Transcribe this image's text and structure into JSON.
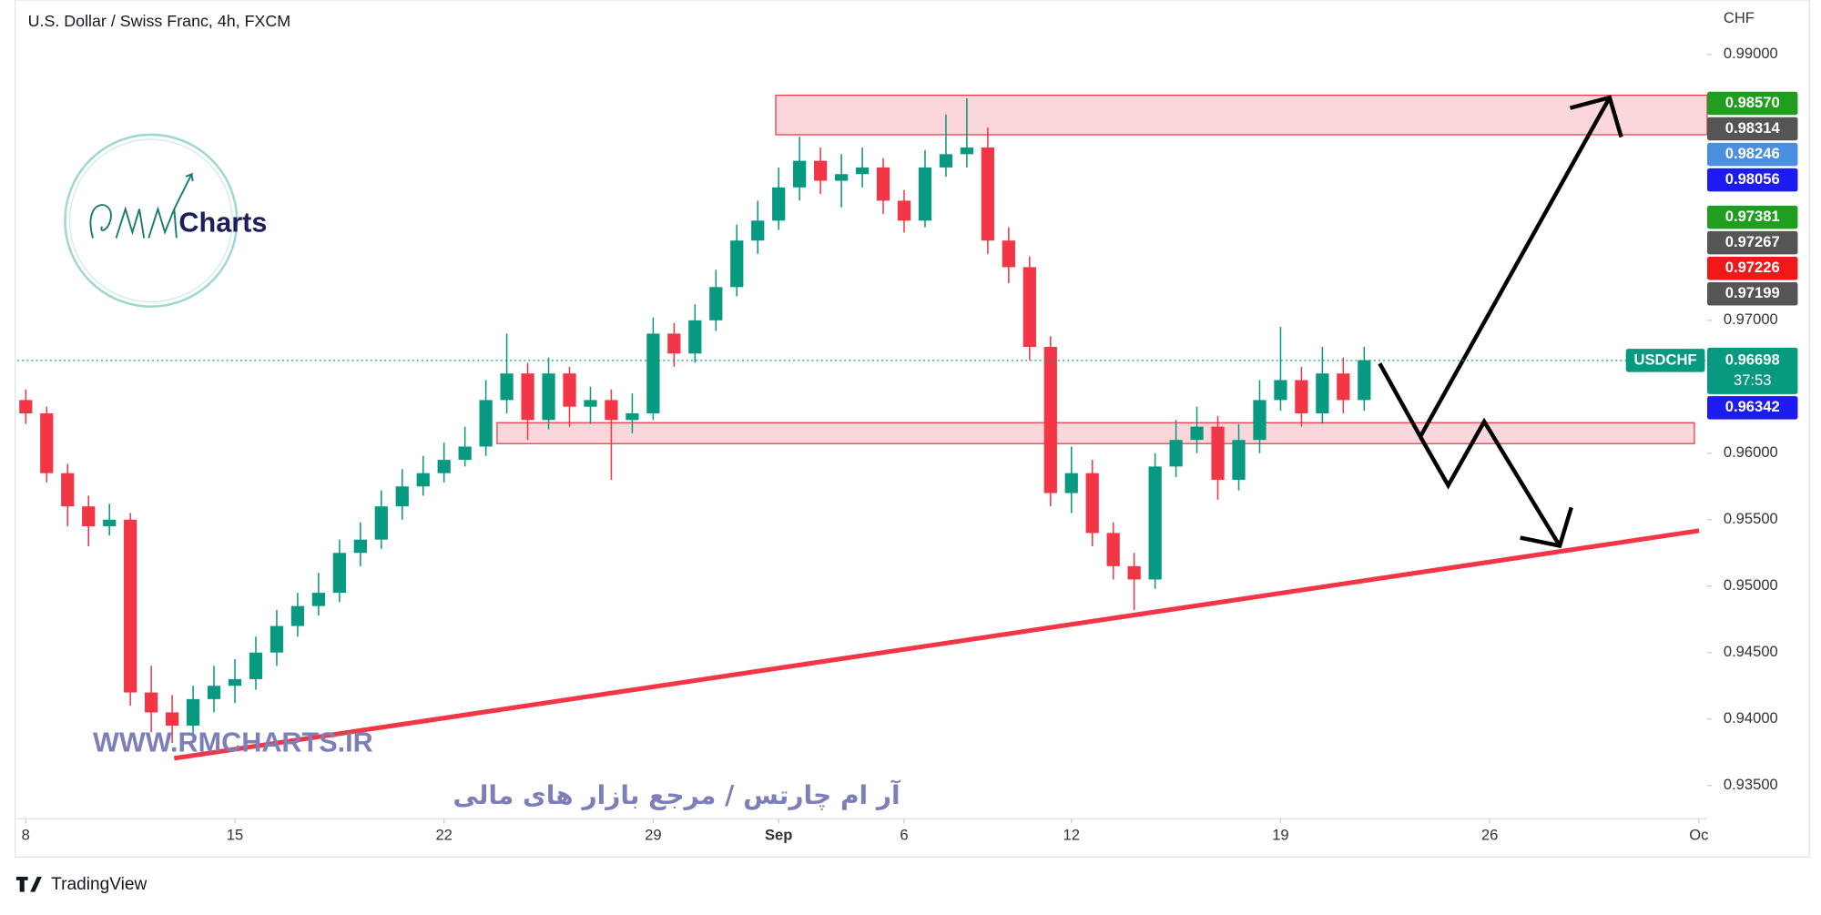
{
  "chart_data": {
    "type": "candlestick",
    "title": "U.S. Dollar / Swiss Franc, 4h, FXCM",
    "y_unit_label": "CHF",
    "up_color": "#089981",
    "down_color": "#f23645",
    "x": [
      0,
      0.5,
      1,
      1.5,
      2,
      2.5,
      3,
      3.5,
      4,
      4.5,
      5,
      5.5,
      6,
      6.5,
      7,
      7.5,
      8,
      8.5,
      9,
      9.5,
      10,
      10.5,
      11,
      11.5,
      12,
      12.5,
      13,
      13.5,
      14,
      14.5,
      15,
      15.5,
      16,
      16.5,
      17,
      17.5,
      18,
      18.5,
      19,
      19.5,
      20,
      20.5,
      21,
      21.5,
      22,
      22.5,
      23,
      23.5,
      24,
      24.5,
      25,
      25.5,
      26,
      26.5,
      27,
      27.5,
      28,
      28.5,
      29,
      29.5,
      30,
      30.5,
      31,
      31.5,
      32
    ],
    "open": [
      0.964,
      0.963,
      0.9585,
      0.956,
      0.9545,
      0.955,
      0.942,
      0.9405,
      0.9395,
      0.9415,
      0.9425,
      0.943,
      0.945,
      0.947,
      0.9485,
      0.9495,
      0.9525,
      0.9535,
      0.956,
      0.9575,
      0.9585,
      0.9595,
      0.9605,
      0.964,
      0.966,
      0.9625,
      0.966,
      0.9635,
      0.964,
      0.9625,
      0.963,
      0.969,
      0.9675,
      0.97,
      0.9725,
      0.976,
      0.9775,
      0.98,
      0.982,
      0.9805,
      0.981,
      0.9815,
      0.979,
      0.9775,
      0.9815,
      0.9825,
      0.983,
      0.976,
      0.974,
      0.968,
      0.957,
      0.9585,
      0.954,
      0.9515,
      0.9505,
      0.959,
      0.961,
      0.962,
      0.958,
      0.961,
      0.964,
      0.9655,
      0.963,
      0.966,
      0.964
    ],
    "high": [
      0.9648,
      0.9635,
      0.9592,
      0.9568,
      0.9562,
      0.9555,
      0.944,
      0.9418,
      0.9425,
      0.944,
      0.9445,
      0.9462,
      0.9482,
      0.9495,
      0.951,
      0.9535,
      0.9548,
      0.9572,
      0.9588,
      0.9598,
      0.9608,
      0.962,
      0.9655,
      0.969,
      0.9668,
      0.9672,
      0.9665,
      0.965,
      0.9648,
      0.9645,
      0.9702,
      0.9698,
      0.9712,
      0.9738,
      0.9772,
      0.979,
      0.9815,
      0.9838,
      0.983,
      0.9825,
      0.983,
      0.9822,
      0.9798,
      0.9828,
      0.9855,
      0.9867,
      0.9845,
      0.977,
      0.9748,
      0.9688,
      0.9605,
      0.9595,
      0.9548,
      0.9525,
      0.96,
      0.9625,
      0.9635,
      0.9628,
      0.9622,
      0.9655,
      0.9695,
      0.9665,
      0.968,
      0.9672,
      0.968
    ],
    "low": [
      0.9622,
      0.9578,
      0.9545,
      0.953,
      0.9538,
      0.941,
      0.939,
      0.9382,
      0.9388,
      0.9405,
      0.9412,
      0.9422,
      0.944,
      0.9462,
      0.9478,
      0.9488,
      0.9515,
      0.9528,
      0.955,
      0.9568,
      0.9578,
      0.959,
      0.9598,
      0.963,
      0.961,
      0.9618,
      0.962,
      0.9622,
      0.958,
      0.9615,
      0.9625,
      0.9665,
      0.9668,
      0.9692,
      0.9718,
      0.975,
      0.9768,
      0.979,
      0.9795,
      0.9785,
      0.98,
      0.978,
      0.9766,
      0.977,
      0.9808,
      0.9815,
      0.975,
      0.9728,
      0.967,
      0.956,
      0.9555,
      0.953,
      0.9505,
      0.9482,
      0.9498,
      0.9582,
      0.96,
      0.9565,
      0.9572,
      0.96,
      0.9632,
      0.962,
      0.9622,
      0.963,
      0.9632
    ],
    "close": [
      0.963,
      0.9585,
      0.956,
      0.9545,
      0.955,
      0.942,
      0.9405,
      0.9395,
      0.9415,
      0.9425,
      0.943,
      0.945,
      0.947,
      0.9485,
      0.9495,
      0.9525,
      0.9535,
      0.956,
      0.9575,
      0.9585,
      0.9595,
      0.9605,
      0.964,
      0.966,
      0.9625,
      0.966,
      0.9635,
      0.964,
      0.9625,
      0.963,
      0.969,
      0.9675,
      0.97,
      0.9725,
      0.976,
      0.9775,
      0.98,
      0.982,
      0.9805,
      0.981,
      0.9815,
      0.979,
      0.9775,
      0.9815,
      0.9825,
      0.983,
      0.976,
      0.974,
      0.968,
      0.957,
      0.9585,
      0.954,
      0.9515,
      0.9505,
      0.959,
      0.961,
      0.962,
      0.958,
      0.961,
      0.964,
      0.9655,
      0.963,
      0.966,
      0.964,
      0.967
    ],
    "xlim": [
      -0.2,
      40.2
    ],
    "ylim": [
      0.9325,
      0.9941
    ],
    "xticks": [
      {
        "value": 0,
        "label": "8"
      },
      {
        "value": 5,
        "label": "15"
      },
      {
        "value": 10,
        "label": "22"
      },
      {
        "value": 15,
        "label": "29"
      },
      {
        "value": 18,
        "label": "Sep"
      },
      {
        "value": 21,
        "label": "6"
      },
      {
        "value": 25,
        "label": "12"
      },
      {
        "value": 30,
        "label": "19"
      },
      {
        "value": 35,
        "label": "26"
      },
      {
        "value": 40,
        "label": "Oc"
      }
    ],
    "yticks": [
      {
        "value": 0.99,
        "label": "0.99000"
      },
      {
        "value": 0.97,
        "label": "0.97000"
      },
      {
        "value": 0.96,
        "label": "0.96000"
      },
      {
        "value": 0.955,
        "label": "0.95500"
      },
      {
        "value": 0.95,
        "label": "0.95000"
      },
      {
        "value": 0.945,
        "label": "0.94500"
      },
      {
        "value": 0.94,
        "label": "0.94000"
      },
      {
        "value": 0.935,
        "label": "0.93500"
      }
    ],
    "current_price": {
      "name": "USDCHF",
      "value": 0.96698,
      "label": "0.96698",
      "countdown": "37:53",
      "color": "#089981"
    },
    "price_labels": [
      {
        "value": 0.9857,
        "label": "0.98570",
        "color": "#1f9e1f"
      },
      {
        "value": 0.98314,
        "label": "0.98314",
        "color": "#555555"
      },
      {
        "value": 0.98246,
        "label": "0.98246",
        "color": "#4a8fe0"
      },
      {
        "value": 0.98056,
        "label": "0.98056",
        "color": "#1c1cf0"
      },
      {
        "value": 0.97381,
        "label": "0.97381",
        "color": "#1f9e1f"
      },
      {
        "value": 0.97267,
        "label": "0.97267",
        "color": "#555555"
      },
      {
        "value": 0.97226,
        "label": "0.97226",
        "color": "#f01818"
      },
      {
        "value": 0.97199,
        "label": "0.97199",
        "color": "#555555"
      },
      {
        "value": 0.96342,
        "label": "0.96342",
        "color": "#1c1cf0"
      }
    ]
  },
  "watermark": {
    "logo_text": "Charts",
    "url": "WWW.RMCHARTS.IR",
    "tagline": "آر ام چارتس / مرجع بازار های مالی"
  },
  "footer": {
    "brand": "TradingView"
  }
}
